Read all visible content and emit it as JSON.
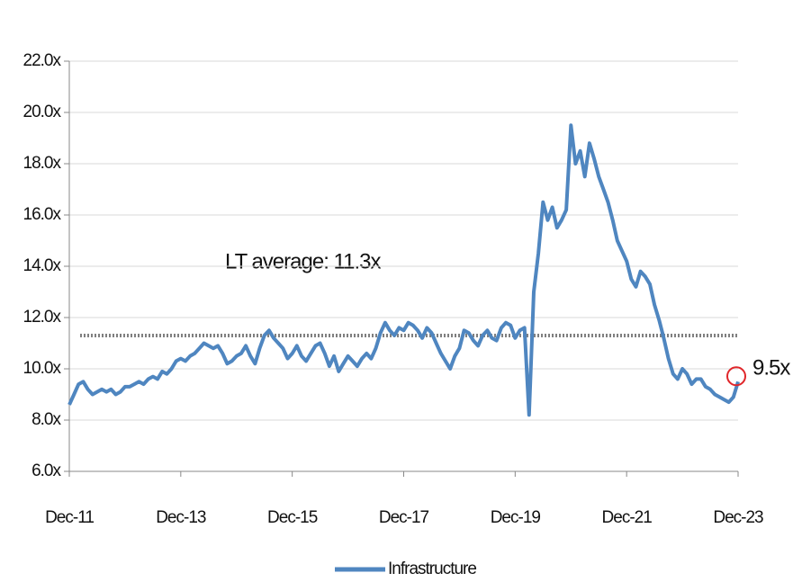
{
  "chart_data": {
    "type": "line",
    "x": [
      "2011-12",
      "2012-01",
      "2012-02",
      "2012-03",
      "2012-04",
      "2012-05",
      "2012-06",
      "2012-07",
      "2012-08",
      "2012-09",
      "2012-10",
      "2012-11",
      "2012-12",
      "2013-01",
      "2013-02",
      "2013-03",
      "2013-04",
      "2013-05",
      "2013-06",
      "2013-07",
      "2013-08",
      "2013-09",
      "2013-10",
      "2013-11",
      "2013-12",
      "2014-01",
      "2014-02",
      "2014-03",
      "2014-04",
      "2014-05",
      "2014-06",
      "2014-07",
      "2014-08",
      "2014-09",
      "2014-10",
      "2014-11",
      "2014-12",
      "2015-01",
      "2015-02",
      "2015-03",
      "2015-04",
      "2015-05",
      "2015-06",
      "2015-07",
      "2015-08",
      "2015-09",
      "2015-10",
      "2015-11",
      "2015-12",
      "2016-01",
      "2016-02",
      "2016-03",
      "2016-04",
      "2016-05",
      "2016-06",
      "2016-07",
      "2016-08",
      "2016-09",
      "2016-10",
      "2016-11",
      "2016-12",
      "2017-01",
      "2017-02",
      "2017-03",
      "2017-04",
      "2017-05",
      "2017-06",
      "2017-07",
      "2017-08",
      "2017-09",
      "2017-10",
      "2017-11",
      "2017-12",
      "2018-01",
      "2018-02",
      "2018-03",
      "2018-04",
      "2018-05",
      "2018-06",
      "2018-07",
      "2018-08",
      "2018-09",
      "2018-10",
      "2018-11",
      "2018-12",
      "2019-01",
      "2019-02",
      "2019-03",
      "2019-04",
      "2019-05",
      "2019-06",
      "2019-07",
      "2019-08",
      "2019-09",
      "2019-10",
      "2019-11",
      "2019-12",
      "2020-01",
      "2020-02",
      "2020-03",
      "2020-04",
      "2020-05",
      "2020-06",
      "2020-07",
      "2020-08",
      "2020-09",
      "2020-10",
      "2020-11",
      "2020-12",
      "2021-01",
      "2021-02",
      "2021-03",
      "2021-04",
      "2021-05",
      "2021-06",
      "2021-07",
      "2021-08",
      "2021-09",
      "2021-10",
      "2021-11",
      "2021-12",
      "2022-01",
      "2022-02",
      "2022-03",
      "2022-04",
      "2022-05",
      "2022-06",
      "2022-07",
      "2022-08",
      "2022-09",
      "2022-10",
      "2022-11",
      "2022-12",
      "2023-01",
      "2023-02",
      "2023-03",
      "2023-04",
      "2023-05",
      "2023-06",
      "2023-07",
      "2023-08",
      "2023-09",
      "2023-10",
      "2023-11",
      "2023-12"
    ],
    "series": [
      {
        "name": "Infrastructure",
        "color": "#4f86c0",
        "values": [
          8.6,
          9.0,
          9.4,
          9.5,
          9.2,
          9.0,
          9.1,
          9.2,
          9.1,
          9.2,
          9.0,
          9.1,
          9.3,
          9.3,
          9.4,
          9.5,
          9.4,
          9.6,
          9.7,
          9.6,
          9.9,
          9.8,
          10.0,
          10.3,
          10.4,
          10.3,
          10.5,
          10.6,
          10.8,
          11.0,
          10.9,
          10.8,
          10.9,
          10.6,
          10.2,
          10.3,
          10.5,
          10.6,
          10.9,
          10.5,
          10.2,
          10.8,
          11.3,
          11.5,
          11.2,
          11.0,
          10.8,
          10.4,
          10.6,
          10.9,
          10.5,
          10.3,
          10.6,
          10.9,
          11.0,
          10.6,
          10.1,
          10.5,
          9.9,
          10.2,
          10.5,
          10.3,
          10.1,
          10.4,
          10.6,
          10.4,
          10.8,
          11.4,
          11.8,
          11.5,
          11.3,
          11.6,
          11.5,
          11.8,
          11.7,
          11.5,
          11.2,
          11.6,
          11.4,
          11.0,
          10.6,
          10.3,
          10.0,
          10.5,
          10.8,
          11.5,
          11.4,
          11.1,
          10.9,
          11.3,
          11.5,
          11.2,
          11.1,
          11.6,
          11.8,
          11.7,
          11.2,
          11.5,
          11.6,
          8.2,
          13.0,
          14.5,
          16.5,
          15.8,
          16.3,
          15.5,
          15.8,
          16.2,
          19.5,
          18.0,
          18.5,
          17.5,
          18.8,
          18.2,
          17.5,
          17.0,
          16.5,
          15.8,
          15.0,
          14.6,
          14.2,
          13.5,
          13.2,
          13.8,
          13.6,
          13.3,
          12.5,
          11.9,
          11.2,
          10.4,
          9.8,
          9.6,
          10.0,
          9.8,
          9.4,
          9.6,
          9.6,
          9.3,
          9.2,
          9.0,
          8.9,
          8.8,
          8.7,
          8.9,
          9.5
        ]
      }
    ],
    "average": 11.3,
    "average_color": "#808080",
    "annotations": [
      "LT average: 11.3x",
      "9.5x"
    ],
    "highlight_color": "#e0262a",
    "xticks": [
      {
        "value": "2011-12",
        "label": "Dec-11"
      },
      {
        "value": "2013-12",
        "label": "Dec-13"
      },
      {
        "value": "2015-12",
        "label": "Dec-15"
      },
      {
        "value": "2017-12",
        "label": "Dec-17"
      },
      {
        "value": "2019-12",
        "label": "Dec-19"
      },
      {
        "value": "2021-12",
        "label": "Dec-21"
      },
      {
        "value": "2023-12",
        "label": "Dec-23"
      }
    ],
    "xlim": [
      "2011-12",
      "2023-12"
    ],
    "ylim": [
      6,
      22
    ],
    "yticks": [
      {
        "value": 6,
        "label": "6.0x"
      },
      {
        "value": 8,
        "label": "8.0x"
      },
      {
        "value": 10,
        "label": "10.0x"
      },
      {
        "value": 12,
        "label": "12.0x"
      },
      {
        "value": 14,
        "label": "14.0x"
      },
      {
        "value": 16,
        "label": "16.0x"
      },
      {
        "value": 18,
        "label": "18.0x"
      },
      {
        "value": 20,
        "label": "20.0x"
      },
      {
        "value": 22,
        "label": "22.0x"
      }
    ],
    "grid": true
  }
}
